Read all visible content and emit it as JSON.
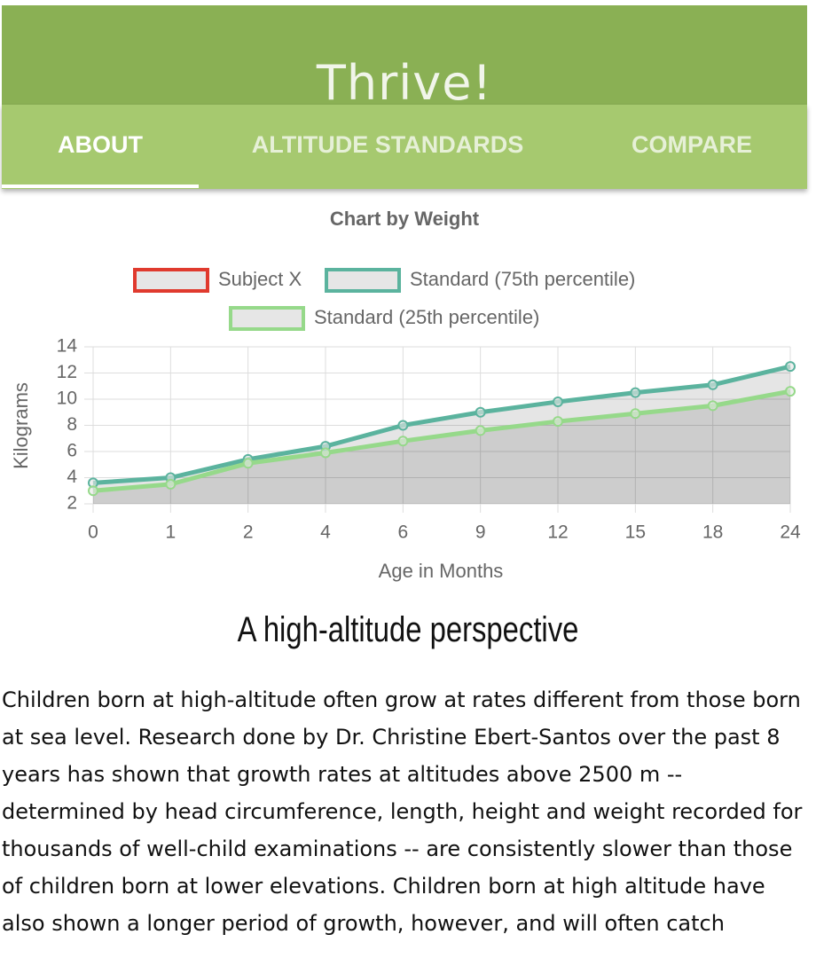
{
  "header": {
    "title": "Thrive!"
  },
  "nav": {
    "tabs": [
      "ABOUT",
      "ALTITUDE STANDARDS",
      "COMPARE"
    ]
  },
  "chart_data": {
    "type": "line",
    "title": "Chart by Weight",
    "categories": [
      "0",
      "1",
      "2",
      "4",
      "6",
      "9",
      "12",
      "15",
      "18",
      "24"
    ],
    "series": [
      {
        "name": "Subject X",
        "color": "#e03a2e",
        "values": [
          null,
          null,
          null,
          null,
          null,
          null,
          null,
          null,
          null,
          null
        ]
      },
      {
        "name": "Standard (75th percentile)",
        "color": "#5bb39e",
        "values": [
          3.6,
          4.0,
          5.4,
          6.4,
          8.0,
          9.0,
          9.8,
          10.5,
          11.1,
          12.5
        ]
      },
      {
        "name": "Standard (25th percentile)",
        "color": "#96d98a",
        "values": [
          3.0,
          3.5,
          5.1,
          5.9,
          6.8,
          7.6,
          8.3,
          8.9,
          9.5,
          10.6
        ]
      }
    ],
    "ylim": [
      2,
      14
    ],
    "yticks": [
      2,
      4,
      6,
      8,
      10,
      12,
      14
    ],
    "grid": true,
    "xlabel": "Age in Months",
    "ylabel": "Kilograms",
    "legend": "top",
    "fill": true
  },
  "article": {
    "heading": "A high-altitude perspective",
    "text": "Children born at high-altitude often grow at rates different from those born at sea level. Research done by Dr. Christine Ebert-Santos over the past 8 years has shown that growth rates at altitudes above 2500 m -- determined by head circumference, length, height and weight recorded for thousands of well-child examinations -- are consistently slower than those of children born at lower elevations. Children born at high altitude have also shown a longer period of growth, however, and will often catch"
  }
}
